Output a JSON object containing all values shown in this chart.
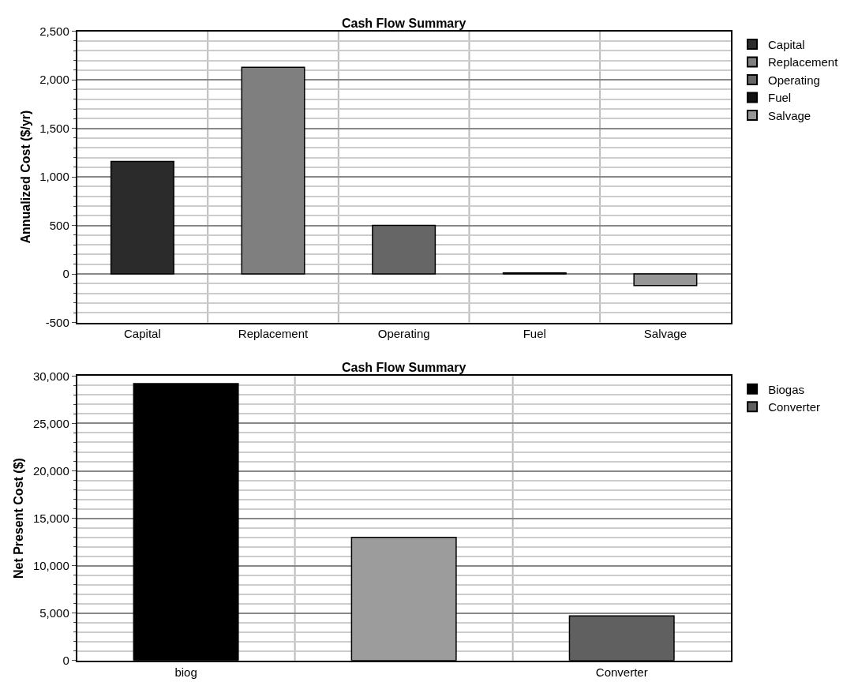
{
  "chart_data": [
    {
      "type": "bar",
      "title": "Cash Flow Summary",
      "ylabel": "Annualized Cost ($/yr)",
      "categories": [
        "Capital",
        "Replacement",
        "Operating",
        "Fuel",
        "Salvage"
      ],
      "series": [
        {
          "name": "Capital",
          "color": "#2b2b2b",
          "values": [
            1160,
            null,
            null,
            null,
            null
          ]
        },
        {
          "name": "Replacement",
          "color": "#7f7f7f",
          "values": [
            null,
            2130,
            null,
            null,
            null
          ]
        },
        {
          "name": "Operating",
          "color": "#666666",
          "values": [
            null,
            null,
            500,
            null,
            null
          ]
        },
        {
          "name": "Fuel",
          "color": "#111111",
          "values": [
            null,
            null,
            null,
            10,
            null
          ]
        },
        {
          "name": "Salvage",
          "color": "#969696",
          "values": [
            null,
            null,
            null,
            null,
            -120
          ]
        }
      ],
      "ylim": [
        -500,
        2500
      ],
      "yticks": [
        {
          "value": -500,
          "label": "-500"
        },
        0,
        500,
        {
          "value": 1000,
          "label": "1,000"
        },
        {
          "value": 1500,
          "label": "1,500"
        },
        {
          "value": 2000,
          "label": "2,000"
        },
        {
          "value": 2500,
          "label": "2,500"
        }
      ],
      "grid": true,
      "legend": "top right"
    },
    {
      "type": "bar",
      "title": "Cash Flow Summary",
      "ylabel": "Net Present Cost ($)",
      "categories": [
        "biog",
        null,
        "Converter"
      ],
      "series": [
        {
          "name": "Biogas",
          "color": "#000000",
          "values": [
            29200,
            null,
            null
          ]
        },
        {
          "color": "#9c9c9c",
          "values": [
            null,
            13000,
            null
          ]
        },
        {
          "name": "Converter",
          "color": "#606060",
          "values": [
            null,
            null,
            4700
          ]
        }
      ],
      "ylim": [
        0,
        30000
      ],
      "yticks": [
        0,
        {
          "value": 5000,
          "label": "5,000"
        },
        {
          "value": 10000,
          "label": "10,000"
        },
        {
          "value": 15000,
          "label": "15,000"
        },
        {
          "value": 20000,
          "label": "20,000"
        },
        {
          "value": 25000,
          "label": "25,000"
        },
        {
          "value": 30000,
          "label": "30,000"
        }
      ],
      "grid": true,
      "legend": "top right"
    }
  ]
}
